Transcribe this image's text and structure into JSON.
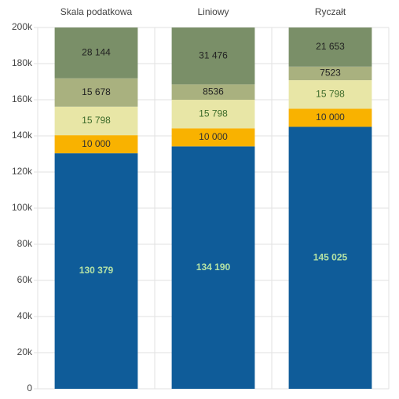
{
  "chart_data": {
    "type": "stacked-bar",
    "categories": [
      "Skala podatkowa",
      "Liniowy",
      "Ryczałt"
    ],
    "series": [
      {
        "color": "#0f5c99",
        "label_color": "#b5e3a5",
        "values": [
          130379,
          134190,
          145025
        ],
        "value_labels": [
          "130 379",
          "134 190",
          "145 025"
        ]
      },
      {
        "color": "#f9b200",
        "label_color": "#333333",
        "values": [
          10000,
          10000,
          10000
        ],
        "value_labels": [
          "10 000",
          "10 000",
          "10 000"
        ]
      },
      {
        "color": "#e8e6a6",
        "label_color": "#3d6b2a",
        "values": [
          15798,
          15798,
          15798
        ],
        "value_labels": [
          "15 798",
          "15 798",
          "15 798"
        ]
      },
      {
        "color": "#a9b17f",
        "label_color": "#222222",
        "values": [
          15678,
          8536,
          7523
        ],
        "value_labels": [
          "15 678",
          "8536",
          "7523"
        ]
      },
      {
        "color": "#7a8f68",
        "label_color": "#222222",
        "values": [
          28144,
          31476,
          21653
        ],
        "value_labels": [
          "28 144",
          "31 476",
          "21 653"
        ]
      }
    ],
    "ylim": [
      0,
      200000
    ],
    "yticks": [
      0,
      {
        "value": 20000,
        "label": "20k"
      },
      {
        "value": 40000,
        "label": "40k"
      },
      {
        "value": 60000,
        "label": "60k"
      },
      {
        "value": 80000,
        "label": "80k"
      },
      {
        "value": 100000,
        "label": "100k"
      },
      {
        "value": 120000,
        "label": "120k"
      },
      {
        "value": 140000,
        "label": "140k"
      },
      {
        "value": 160000,
        "label": "160k"
      },
      {
        "value": 180000,
        "label": "180k"
      },
      {
        "value": 200000,
        "label": "200k"
      }
    ],
    "grid": true
  }
}
